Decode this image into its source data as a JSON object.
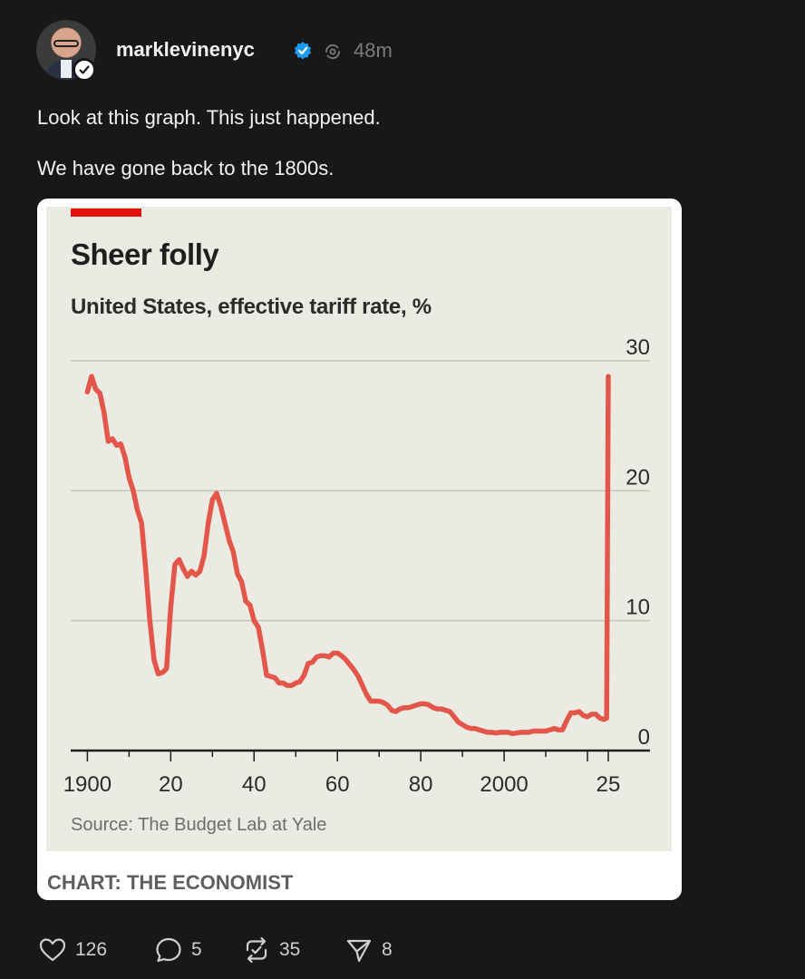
{
  "post": {
    "username": "marklevinenyc",
    "time": "48m",
    "text_lines": [
      "Look at this graph. This just happened.",
      "We have gone back to the 1800s."
    ]
  },
  "actions": {
    "likes": "126",
    "replies": "5",
    "reposts": "35",
    "shares": "8"
  },
  "colors": {
    "background": "#181818",
    "chart_background": "#ebebe4",
    "line": "#e3574a",
    "accent_bar": "#e3120b",
    "verified": "#1d9bf0"
  },
  "icons": [
    "verified-icon",
    "repost-indicator-icon",
    "follow-check-icon",
    "heart-icon",
    "comment-icon",
    "repost-icon",
    "send-icon"
  ],
  "chart_data": {
    "type": "line",
    "title": "Sheer folly",
    "subtitle": "United States, effective tariff rate, %",
    "source": "Source: The Budget Lab at Yale",
    "credit": "CHART: THE ECONOMIST",
    "xlim": [
      1896,
      2035
    ],
    "ylim": [
      0,
      30
    ],
    "x_ticks": [
      1900,
      1920,
      1940,
      1960,
      1980,
      2000,
      2025
    ],
    "x_tick_labels": [
      "1900",
      "20",
      "40",
      "60",
      "80",
      "2000",
      "25"
    ],
    "y_ticks": [
      0,
      10,
      20,
      30
    ],
    "y_tick_labels": [
      "0",
      "10",
      "20",
      "30"
    ],
    "grid": true,
    "series": [
      {
        "x": [
          1900,
          1901,
          1902,
          1903,
          1904,
          1905,
          1906,
          1907,
          1908,
          1909,
          1910,
          1911,
          1912,
          1913,
          1914,
          1915,
          1916,
          1917,
          1918,
          1919,
          1920,
          1921,
          1922,
          1923,
          1924,
          1925,
          1926,
          1927,
          1928,
          1929,
          1930,
          1931,
          1932,
          1933,
          1934,
          1935,
          1936,
          1937,
          1938,
          1939,
          1940,
          1941,
          1942,
          1943,
          1944,
          1945,
          1946,
          1947,
          1948,
          1949,
          1950,
          1951,
          1952,
          1953,
          1954,
          1955,
          1956,
          1957,
          1958,
          1959,
          1960,
          1961,
          1962,
          1963,
          1964,
          1965,
          1966,
          1967,
          1968,
          1969,
          1970,
          1971,
          1972,
          1973,
          1974,
          1975,
          1976,
          1977,
          1978,
          1979,
          1980,
          1981,
          1982,
          1983,
          1984,
          1985,
          1986,
          1987,
          1988,
          1989,
          1990,
          1991,
          1992,
          1993,
          1994,
          1995,
          1996,
          1997,
          1998,
          1999,
          2000,
          2001,
          2002,
          2003,
          2004,
          2005,
          2006,
          2007,
          2008,
          2009,
          2010,
          2011,
          2012,
          2013,
          2014,
          2015,
          2016,
          2017,
          2018,
          2019,
          2020,
          2021,
          2022,
          2023,
          2024,
          2024.6,
          2025
        ],
        "values": [
          27.6,
          28.8,
          27.8,
          27.5,
          26.0,
          23.8,
          24.0,
          23.5,
          23.6,
          22.6,
          21.0,
          20.0,
          18.5,
          17.5,
          14.0,
          10.0,
          7.0,
          5.9,
          6.0,
          6.3,
          11.0,
          14.3,
          14.7,
          14.0,
          13.4,
          13.8,
          13.5,
          13.8,
          15.0,
          17.5,
          19.3,
          19.8,
          18.8,
          17.5,
          16.2,
          15.3,
          13.6,
          13.0,
          11.5,
          11.2,
          10.0,
          9.5,
          7.8,
          5.8,
          5.7,
          5.6,
          5.2,
          5.2,
          5.0,
          5.0,
          5.2,
          5.3,
          5.8,
          6.7,
          6.8,
          7.2,
          7.3,
          7.3,
          7.2,
          7.5,
          7.5,
          7.3,
          7.0,
          6.6,
          6.2,
          5.7,
          5.0,
          4.3,
          3.8,
          3.8,
          3.8,
          3.7,
          3.5,
          3.1,
          3.0,
          3.2,
          3.3,
          3.3,
          3.4,
          3.5,
          3.6,
          3.6,
          3.5,
          3.3,
          3.2,
          3.2,
          3.1,
          3.0,
          2.6,
          2.2,
          2.0,
          1.8,
          1.7,
          1.7,
          1.6,
          1.5,
          1.4,
          1.4,
          1.35,
          1.4,
          1.4,
          1.4,
          1.3,
          1.35,
          1.4,
          1.4,
          1.4,
          1.5,
          1.5,
          1.5,
          1.5,
          1.6,
          1.7,
          1.6,
          1.6,
          2.3,
          2.9,
          2.9,
          3.0,
          2.7,
          2.6,
          2.8,
          2.8,
          2.5,
          2.4,
          2.5,
          28.8
        ]
      }
    ]
  }
}
